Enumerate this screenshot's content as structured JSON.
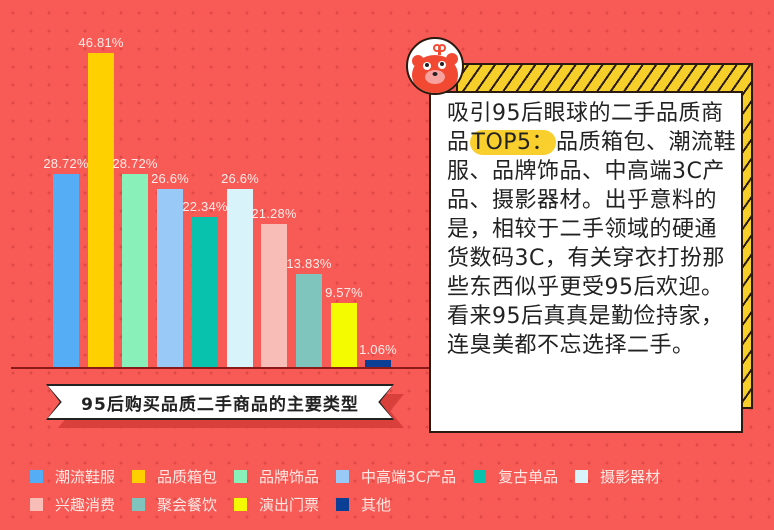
{
  "chart_data": {
    "type": "bar",
    "title": "95后购买品质二手商品的主要类型",
    "xlabel": "",
    "ylabel": "",
    "grid": false,
    "legend_position": "bottom",
    "categories": [
      "潮流鞋服",
      "品质箱包",
      "品牌饰品",
      "中高端3C产品",
      "复古单品",
      "摄影器材",
      "兴趣消费",
      "聚会餐饮",
      "演出门票",
      "其他"
    ],
    "values": [
      28.72,
      46.81,
      28.72,
      26.6,
      22.34,
      26.6,
      21.28,
      13.83,
      9.57,
      1.06
    ],
    "labels": [
      "28.72%",
      "46.81%",
      "28.72%",
      "26.6%",
      "22.34%",
      "26.6%",
      "21.28%",
      "13.83%",
      "9.57%",
      "1.06%"
    ],
    "colors": [
      "#55adf5",
      "#ffd000",
      "#88f0b8",
      "#99c9f7",
      "#08c2ae",
      "#d9f3fb",
      "#f9bdb8",
      "#7fc4bd",
      "#f4fb00",
      "#0b3f96"
    ],
    "unit": "%"
  },
  "banner": {
    "title": "95后购买品质二手商品的主要类型"
  },
  "textbox": {
    "before": "吸引95后眼球的二手品质商品",
    "highlight": "TOP5：",
    "after": "品质箱包、潮流鞋服、品牌饰品、中高端3C产品、摄影器材。出乎意料的是，相较于二手领域的硬通货数码3C，有关穿衣打扮那些东西似乎更受95后欢迎。看来95后真真是勤俭持家，连臭美都不忘选择二手。"
  },
  "mascot": {
    "icon": "bear-mascot-icon"
  },
  "legend": {
    "rows": [
      [
        0,
        1,
        2,
        3,
        4,
        5
      ],
      [
        6,
        7,
        8,
        9
      ]
    ]
  },
  "colors": {
    "background": "#f85a55",
    "stripe_yellow": "#f7cf2a",
    "highlight": "#f9cf2d"
  }
}
